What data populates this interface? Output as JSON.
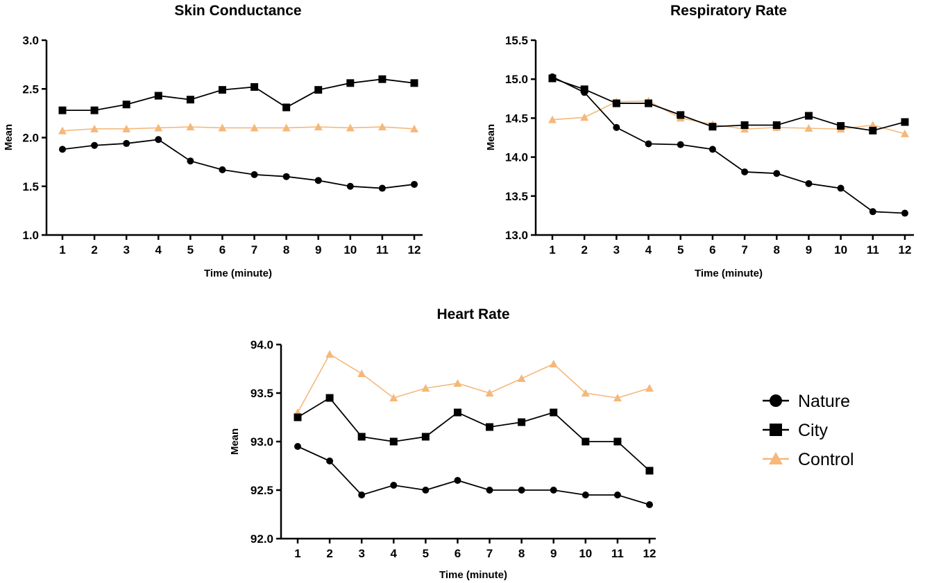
{
  "colors": {
    "nature": "#000000",
    "city": "#000000",
    "control": "#F5B87A"
  },
  "legend": {
    "items": [
      {
        "label": "Nature",
        "marker": "circle",
        "color": "#000000"
      },
      {
        "label": "City",
        "marker": "square",
        "color": "#000000"
      },
      {
        "label": "Control",
        "marker": "triangle",
        "color": "#F5B87A"
      }
    ],
    "placement": "right of Heart Rate chart"
  },
  "chart_data": [
    {
      "type": "line",
      "title": "Skin Conductance",
      "xlabel": "Time (minute)",
      "ylabel": "Mean",
      "x": [
        1,
        2,
        3,
        4,
        5,
        6,
        7,
        8,
        9,
        10,
        11,
        12
      ],
      "x_tick_labels": [
        "1",
        "2",
        "3",
        "4",
        "5",
        "6",
        "7",
        "8",
        "9",
        "10",
        "11",
        "12"
      ],
      "ylim": [
        1.0,
        3.0
      ],
      "y_tick_labels": [
        "1.0",
        "1.5",
        "2.0",
        "2.5",
        "3.0"
      ],
      "grid": false,
      "series": [
        {
          "name": "Nature",
          "marker": "circle",
          "values": [
            1.88,
            1.92,
            1.94,
            1.98,
            1.76,
            1.67,
            1.62,
            1.6,
            1.56,
            1.5,
            1.48,
            1.52
          ]
        },
        {
          "name": "City",
          "marker": "square",
          "values": [
            2.28,
            2.28,
            2.34,
            2.43,
            2.39,
            2.49,
            2.52,
            2.31,
            2.49,
            2.56,
            2.6,
            2.56
          ]
        },
        {
          "name": "Control",
          "marker": "triangle",
          "values": [
            2.07,
            2.09,
            2.09,
            2.1,
            2.11,
            2.1,
            2.1,
            2.1,
            2.11,
            2.1,
            2.11,
            2.09
          ]
        }
      ]
    },
    {
      "type": "line",
      "title": "Respiratory Rate",
      "xlabel": "Time (minute)",
      "ylabel": "Mean",
      "x": [
        1,
        2,
        3,
        4,
        5,
        6,
        7,
        8,
        9,
        10,
        11,
        12
      ],
      "x_tick_labels": [
        "1",
        "2",
        "3",
        "4",
        "5",
        "6",
        "7",
        "8",
        "9",
        "10",
        "11",
        "12"
      ],
      "ylim": [
        13.0,
        15.5
      ],
      "y_tick_labels": [
        "13.0",
        "13.5",
        "14.0",
        "14.5",
        "15.0",
        "15.5"
      ],
      "grid": false,
      "series": [
        {
          "name": "Nature",
          "marker": "circle",
          "values": [
            15.03,
            14.83,
            14.38,
            14.17,
            14.16,
            14.1,
            13.81,
            13.79,
            13.66,
            13.6,
            13.3,
            13.28
          ]
        },
        {
          "name": "City",
          "marker": "square",
          "values": [
            15.01,
            14.87,
            14.69,
            14.69,
            14.54,
            14.39,
            14.41,
            14.41,
            14.53,
            14.4,
            14.34,
            14.45
          ]
        },
        {
          "name": "Control",
          "marker": "triangle",
          "values": [
            14.48,
            14.51,
            14.71,
            14.72,
            14.5,
            14.42,
            14.36,
            14.38,
            14.37,
            14.36,
            14.41,
            14.3
          ]
        }
      ]
    },
    {
      "type": "line",
      "title": "Heart Rate",
      "xlabel": "Time (minute)",
      "ylabel": "Mean",
      "x": [
        1,
        2,
        3,
        4,
        5,
        6,
        7,
        8,
        9,
        10,
        11,
        12
      ],
      "x_tick_labels": [
        "1",
        "2",
        "3",
        "4",
        "5",
        "6",
        "7",
        "8",
        "9",
        "10",
        "11",
        "12"
      ],
      "ylim": [
        92.0,
        94.0
      ],
      "y_tick_labels": [
        "92.0",
        "92.5",
        "93.0",
        "93.5",
        "94.0"
      ],
      "grid": false,
      "series": [
        {
          "name": "Nature",
          "marker": "circle",
          "values": [
            92.95,
            92.8,
            92.45,
            92.55,
            92.5,
            92.6,
            92.5,
            92.5,
            92.5,
            92.45,
            92.45,
            92.35
          ]
        },
        {
          "name": "City",
          "marker": "square",
          "values": [
            93.25,
            93.45,
            93.05,
            93.0,
            93.05,
            93.3,
            93.15,
            93.2,
            93.3,
            93.0,
            93.0,
            92.7
          ]
        },
        {
          "name": "Control",
          "marker": "triangle",
          "values": [
            93.3,
            93.9,
            93.7,
            93.45,
            93.55,
            93.6,
            93.5,
            93.65,
            93.8,
            93.5,
            93.45,
            93.55
          ]
        }
      ]
    }
  ]
}
